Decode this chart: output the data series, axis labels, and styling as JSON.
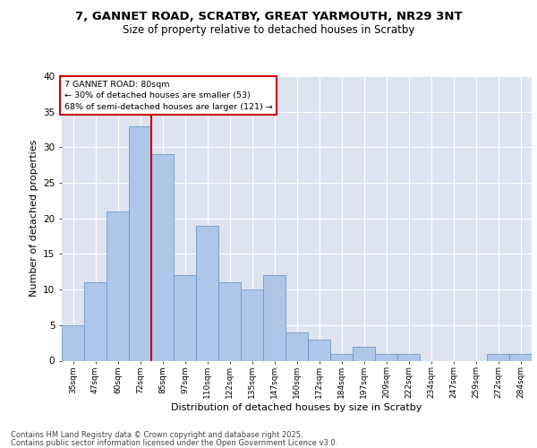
{
  "title1": "7, GANNET ROAD, SCRATBY, GREAT YARMOUTH, NR29 3NT",
  "title2": "Size of property relative to detached houses in Scratby",
  "xlabel": "Distribution of detached houses by size in Scratby",
  "ylabel": "Number of detached properties",
  "categories": [
    "35sqm",
    "47sqm",
    "60sqm",
    "72sqm",
    "85sqm",
    "97sqm",
    "110sqm",
    "122sqm",
    "135sqm",
    "147sqm",
    "160sqm",
    "172sqm",
    "184sqm",
    "197sqm",
    "209sqm",
    "222sqm",
    "234sqm",
    "247sqm",
    "259sqm",
    "272sqm",
    "284sqm"
  ],
  "values": [
    5,
    11,
    21,
    33,
    29,
    12,
    19,
    11,
    10,
    12,
    4,
    3,
    1,
    2,
    1,
    1,
    0,
    0,
    0,
    1,
    1
  ],
  "bar_color": "#aec6e8",
  "bar_edge_color": "#5a8fc0",
  "annotation_line1": "7 GANNET ROAD: 80sqm",
  "annotation_line2": "← 30% of detached houses are smaller (53)",
  "annotation_line3": "68% of semi-detached houses are larger (121) →",
  "annotation_box_color": "#ffffff",
  "annotation_box_edge": "#cc0000",
  "redline_color": "#cc0000",
  "ylim": [
    0,
    40
  ],
  "yticks": [
    0,
    5,
    10,
    15,
    20,
    25,
    30,
    35,
    40
  ],
  "background_color": "#dde4f0",
  "footer_line1": "Contains HM Land Registry data © Crown copyright and database right 2025.",
  "footer_line2": "Contains public sector information licensed under the Open Government Licence v3.0."
}
